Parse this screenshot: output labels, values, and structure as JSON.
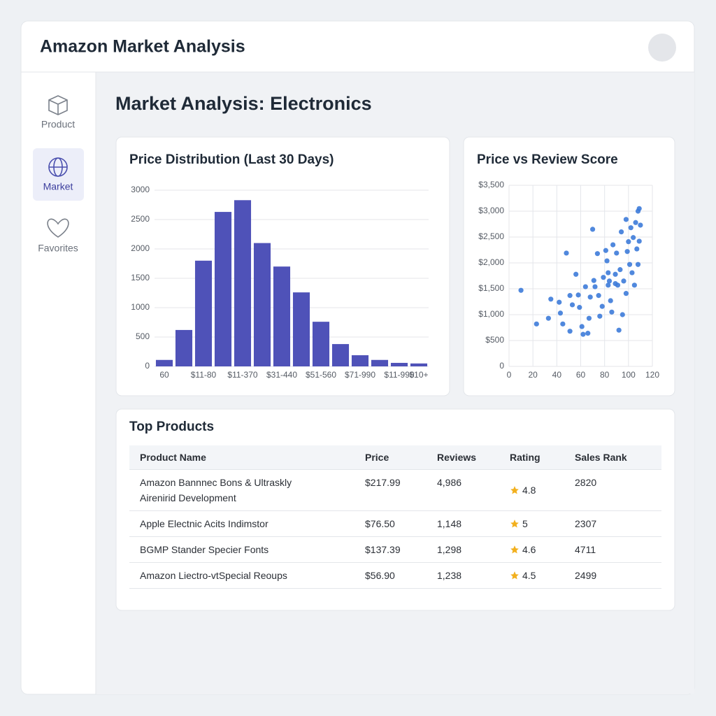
{
  "header": {
    "title": "Amazon Market Analysis"
  },
  "sidebar": {
    "items": [
      "Product",
      "Market",
      "Favorites"
    ]
  },
  "page_title": "Market Analysis: Electronics",
  "chart_data": [
    {
      "type": "bar",
      "title": "Price Distribution (Last 30 Days)",
      "categories": [
        "60",
        null,
        "$11-80",
        null,
        "$11-370",
        null,
        "$31-440",
        null,
        "$51-560",
        null,
        "$71-990",
        null,
        "$11-990",
        "$10+"
      ],
      "values": [
        110,
        620,
        1800,
        2630,
        2830,
        2100,
        1700,
        1260,
        760,
        380,
        190,
        110,
        60,
        50
      ],
      "color": "#4f52b8",
      "ylim": [
        0,
        3000
      ],
      "yticks": [
        0,
        500,
        1000,
        1500,
        2000,
        2500,
        3000
      ],
      "grid": true
    },
    {
      "type": "scatter",
      "title": "Price vs Review Score",
      "x": [
        10,
        23,
        33,
        35,
        42,
        43,
        48,
        45,
        51,
        51,
        53,
        56,
        58,
        59,
        61,
        62,
        64,
        66,
        67,
        68,
        70,
        71,
        72,
        74,
        75,
        76,
        78,
        79,
        81,
        82,
        83,
        84,
        85,
        86,
        87,
        89,
        90,
        91,
        92,
        93,
        94,
        95,
        96,
        98,
        99,
        100,
        101,
        102,
        103,
        104,
        105,
        106,
        107,
        108,
        109,
        110,
        109,
        108,
        98,
        89,
        83
      ],
      "values": [
        1470,
        820,
        930,
        1300,
        1240,
        1030,
        2190,
        820,
        1370,
        680,
        1190,
        1780,
        1380,
        1140,
        770,
        620,
        1540,
        640,
        930,
        1340,
        2650,
        1660,
        1540,
        2180,
        1370,
        970,
        1160,
        1720,
        2240,
        2040,
        1570,
        1650,
        1270,
        1050,
        2350,
        1780,
        2190,
        1570,
        700,
        1870,
        2600,
        1000,
        1650,
        2840,
        2220,
        2410,
        1970,
        2680,
        1810,
        2490,
        1570,
        2780,
        2270,
        3000,
        3050,
        2730,
        2420,
        1970,
        1410,
        1600,
        1810
      ],
      "color": "#3d7bd9",
      "xlim": [
        0,
        120
      ],
      "xticks": [
        0,
        20,
        40,
        60,
        80,
        100,
        120
      ],
      "ylim": [
        0,
        3500
      ],
      "yticks": [
        0,
        {
          "value": 500,
          "label": "$500"
        },
        {
          "value": 1000,
          "label": "$1,000"
        },
        {
          "value": 1500,
          "label": "$1,500"
        },
        {
          "value": 2000,
          "label": "$2,000"
        },
        {
          "value": 2500,
          "label": "$2,500"
        },
        {
          "value": 3000,
          "label": "$3,000"
        },
        {
          "value": 3500,
          "label": "$3,500"
        }
      ],
      "grid": true
    }
  ],
  "table": {
    "title": "Top Products",
    "columns": [
      "Product Name",
      "Price",
      "Reviews",
      "Rating",
      "Sales Rank"
    ],
    "rows": [
      [
        "Amazon Bannnec Bons & Ultraskly Airenirid Development",
        "$217.99",
        "4,986",
        "4.8",
        "2820"
      ],
      [
        "Apple Electnic Acits Indimstor",
        "$76.50",
        "1,148",
        "5",
        "2307"
      ],
      [
        "BGMP Stander Specier Fonts",
        "$137.39",
        "1,298",
        "4.6",
        "4711"
      ],
      [
        "Amazon Liectro-vtSpecial Reoups",
        "$56.90",
        "1,238",
        "4.5",
        "2499"
      ]
    ]
  }
}
